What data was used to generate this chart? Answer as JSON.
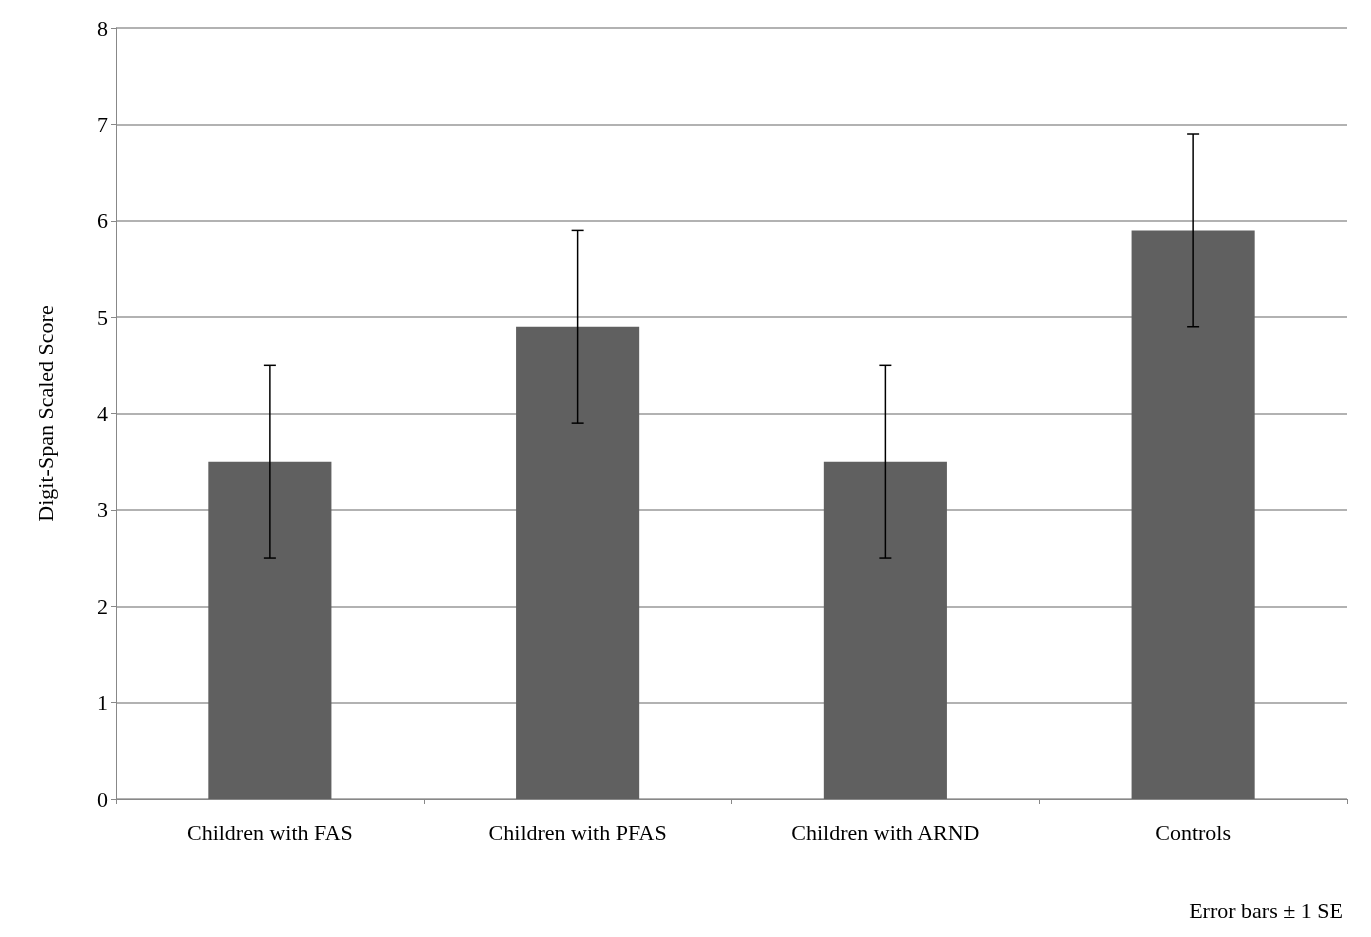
{
  "chart_data": {
    "type": "bar",
    "ylabel": "Digit-Span Scaled Score",
    "categories": [
      "Children with FAS",
      "Children with PFAS",
      "Children with ARND",
      "Controls"
    ],
    "values": [
      3.5,
      4.9,
      3.5,
      5.9
    ],
    "errors": [
      1,
      1,
      1,
      1
    ],
    "color": "#606060",
    "ylim": [
      0,
      8
    ],
    "yticks": [
      0,
      1,
      2,
      3,
      4,
      5,
      6,
      7,
      8
    ],
    "grid": "y",
    "annotations": [
      "Error bars ± 1 SE"
    ]
  }
}
